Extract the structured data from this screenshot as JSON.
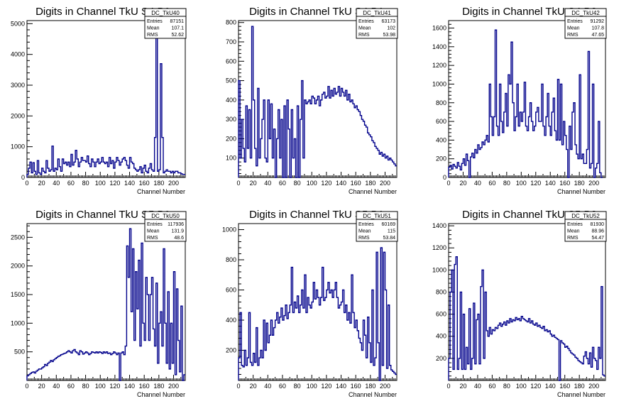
{
  "chart_data": [
    {
      "type": "bar",
      "title": "Digits in Channel TkU S4 P0",
      "xlabel": "Channel Number",
      "ylabel": "",
      "xlim": [
        0,
        216
      ],
      "ylim": [
        0,
        5100
      ],
      "xticks": [
        0,
        20,
        40,
        60,
        80,
        100,
        120,
        140,
        160,
        180,
        200
      ],
      "yticks": [
        0,
        1000,
        2000,
        3000,
        4000,
        5000
      ],
      "color": "#00008b",
      "stats": {
        "name": "DC_TkU40",
        "entries": "87151",
        "mean": "107.1",
        "rms": "52.62"
      },
      "series": [
        {
          "name": "DC_TkU40",
          "x_step": 2,
          "values": [
            100,
            300,
            500,
            150,
            480,
            200,
            100,
            550,
            150,
            100,
            300,
            200,
            150,
            550,
            300,
            200,
            250,
            1020,
            200,
            300,
            250,
            600,
            350,
            200,
            600,
            450,
            500,
            400,
            500,
            350,
            750,
            400,
            500,
            880,
            600,
            350,
            500,
            650,
            550,
            550,
            500,
            700,
            450,
            350,
            600,
            500,
            350,
            500,
            600,
            450,
            500,
            650,
            500,
            450,
            500,
            350,
            650,
            450,
            550,
            300,
            500,
            650,
            550,
            400,
            500,
            600,
            650,
            550,
            400,
            300,
            650,
            500,
            450,
            300,
            250,
            200,
            250,
            350,
            150,
            300,
            400,
            200,
            150,
            300,
            450,
            250,
            200,
            1300,
            4800,
            200,
            250,
            3700,
            1300,
            150,
            200,
            250,
            200,
            200,
            150,
            200,
            150,
            200,
            200,
            150,
            150,
            120,
            100,
            100
          ]
        }
      ]
    },
    {
      "type": "bar",
      "title": "Digits in Channel TkU S4 P1",
      "xlabel": "Channel Number",
      "ylabel": "",
      "xlim": [
        0,
        216
      ],
      "ylim": [
        0,
        810
      ],
      "xticks": [
        0,
        20,
        40,
        60,
        80,
        100,
        120,
        140,
        160,
        180,
        200
      ],
      "yticks": [
        100,
        200,
        300,
        400,
        500,
        600,
        700,
        800
      ],
      "color": "#00008b",
      "stats": {
        "name": "DC_TkU41",
        "entries": "63173",
        "mean": "102",
        "rms": "53.98"
      },
      "series": [
        {
          "name": "DC_TkU41",
          "x_step": 2,
          "values": [
            500,
            100,
            300,
            150,
            80,
            370,
            150,
            350,
            100,
            780,
            400,
            150,
            60,
            460,
            100,
            200,
            300,
            400,
            100,
            80,
            400,
            200,
            380,
            100,
            250,
            0,
            200,
            350,
            100,
            300,
            0,
            370,
            0,
            400,
            250,
            0,
            350,
            100,
            200,
            0,
            370,
            0,
            300,
            500,
            100,
            400,
            380,
            390,
            400,
            380,
            420,
            410,
            380,
            400,
            420,
            370,
            400,
            430,
            440,
            410,
            420,
            470,
            410,
            450,
            420,
            460,
            430,
            440,
            470,
            420,
            460,
            440,
            420,
            450,
            400,
            430,
            390,
            400,
            380,
            360,
            370,
            350,
            340,
            320,
            300,
            290,
            270,
            260,
            230,
            220,
            210,
            190,
            180,
            160,
            150,
            140,
            120,
            130,
            110,
            120,
            100,
            110,
            90,
            100,
            90,
            80,
            70,
            60
          ]
        }
      ]
    },
    {
      "type": "bar",
      "title": "Digits in Channel TkU S4 P2",
      "xlabel": "Channel Number",
      "ylabel": "",
      "xlim": [
        0,
        216
      ],
      "ylim": [
        0,
        1680
      ],
      "xticks": [
        0,
        20,
        40,
        60,
        80,
        100,
        120,
        140,
        160,
        180,
        200
      ],
      "yticks": [
        0,
        200,
        400,
        600,
        800,
        1000,
        1200,
        1400,
        1600
      ],
      "color": "#00008b",
      "stats": {
        "name": "DC_TkU42",
        "entries": "91292",
        "mean": "107.8",
        "rms": "47.65"
      },
      "series": [
        {
          "name": "DC_TkU42",
          "x_step": 2,
          "values": [
            110,
            130,
            90,
            140,
            120,
            100,
            160,
            120,
            80,
            150,
            200,
            130,
            250,
            180,
            0,
            220,
            260,
            210,
            300,
            260,
            350,
            300,
            320,
            380,
            350,
            400,
            450,
            380,
            1000,
            650,
            450,
            650,
            1580,
            550,
            450,
            1000,
            600,
            480,
            700,
            900,
            550,
            1100,
            1000,
            1450,
            800,
            500,
            650,
            1000,
            550,
            700,
            600,
            700,
            1020,
            550,
            500,
            650,
            800,
            600,
            500,
            550,
            700,
            750,
            600,
            600,
            1000,
            550,
            450,
            650,
            900,
            550,
            450,
            700,
            850,
            500,
            400,
            1050,
            400,
            1000,
            350,
            600,
            450,
            300,
            0,
            550,
            300,
            700,
            800,
            350,
            250,
            200,
            1100,
            200,
            250,
            150,
            150,
            300,
            1350,
            100,
            150,
            1000,
            0,
            100,
            150,
            600,
            50,
            0
          ]
        }
      ]
    },
    {
      "type": "bar",
      "title": "Digits in Channel TkU S5 P0",
      "xlabel": "Channel Number",
      "ylabel": "",
      "xlim": [
        0,
        216
      ],
      "ylim": [
        0,
        2740
      ],
      "xticks": [
        0,
        20,
        40,
        60,
        80,
        100,
        120,
        140,
        160,
        180,
        200
      ],
      "yticks": [
        500,
        1000,
        1500,
        2000,
        2500
      ],
      "color": "#00008b",
      "stats": {
        "name": "DC_TkU50",
        "entries": "117936",
        "mean": "131.9",
        "rms": "48.6"
      },
      "series": [
        {
          "name": "DC_TkU50",
          "x_step": 2,
          "values": [
            80,
            100,
            120,
            140,
            150,
            130,
            160,
            180,
            200,
            200,
            220,
            240,
            280,
            260,
            300,
            320,
            350,
            330,
            360,
            380,
            400,
            420,
            430,
            450,
            460,
            470,
            480,
            500,
            520,
            500,
            480,
            520,
            540,
            500,
            480,
            450,
            520,
            500,
            460,
            480,
            500,
            480,
            450,
            470,
            500,
            490,
            480,
            500,
            480,
            500,
            490,
            470,
            500,
            480,
            500,
            470,
            480,
            450,
            470,
            500,
            480,
            450,
            480,
            0,
            480,
            500,
            450,
            600,
            2350,
            1800,
            2650,
            1200,
            2300,
            700,
            1900,
            1250,
            2100,
            600,
            2400,
            1000,
            700,
            1800,
            1500,
            700,
            1500,
            1800,
            900,
            600,
            1700,
            300,
            1000,
            1200,
            600,
            2300,
            1000,
            300,
            1550,
            200,
            1000,
            300,
            1900,
            100,
            1600,
            700,
            150,
            1300,
            0,
            100
          ]
        }
      ]
    },
    {
      "type": "bar",
      "title": "Digits in Channel TkU S5 P1",
      "xlabel": "Channel Number",
      "ylabel": "",
      "xlim": [
        0,
        216
      ],
      "ylim": [
        0,
        1040
      ],
      "xticks": [
        0,
        20,
        40,
        60,
        80,
        100,
        120,
        140,
        160,
        180,
        200
      ],
      "yticks": [
        200,
        400,
        600,
        800,
        1000
      ],
      "color": "#00008b",
      "stats": {
        "name": "DC_TkU51",
        "entries": "60169",
        "mean": "115",
        "rms": "53.84"
      },
      "series": [
        {
          "name": "DC_TkU51",
          "x_step": 2,
          "values": [
            150,
            450,
            100,
            90,
            200,
            100,
            150,
            450,
            120,
            100,
            180,
            120,
            350,
            100,
            150,
            200,
            150,
            400,
            200,
            380,
            250,
            300,
            400,
            300,
            350,
            400,
            450,
            380,
            420,
            480,
            400,
            430,
            500,
            410,
            450,
            500,
            750,
            450,
            520,
            480,
            560,
            450,
            500,
            600,
            480,
            700,
            450,
            550,
            500,
            480,
            520,
            650,
            540,
            600,
            550,
            500,
            550,
            750,
            530,
            550,
            600,
            650,
            580,
            600,
            550,
            600,
            650,
            550,
            480,
            500,
            520,
            600,
            450,
            500,
            400,
            450,
            380,
            700,
            450,
            350,
            400,
            330,
            280,
            250,
            200,
            400,
            300,
            150,
            420,
            250,
            120,
            600,
            100,
            150,
            850,
            250,
            0,
            880,
            100,
            850,
            600,
            80,
            500,
            100,
            70,
            60,
            50,
            40
          ]
        }
      ]
    },
    {
      "type": "bar",
      "title": "Digits in Channel TkU S5 P2",
      "xlabel": "Channel Number",
      "ylabel": "",
      "xlim": [
        0,
        216
      ],
      "ylim": [
        0,
        1420
      ],
      "xticks": [
        0,
        20,
        40,
        60,
        80,
        100,
        120,
        140,
        160,
        180,
        200
      ],
      "yticks": [
        200,
        400,
        600,
        800,
        1000,
        1200,
        1400
      ],
      "color": "#00008b",
      "stats": {
        "name": "DC_TkU52",
        "entries": "81930",
        "mean": "88.96",
        "rms": "54.47"
      },
      "series": [
        {
          "name": "DC_TkU52",
          "x_step": 2,
          "values": [
            200,
            800,
            1000,
            100,
            1050,
            1120,
            100,
            200,
            800,
            100,
            600,
            100,
            300,
            150,
            650,
            100,
            200,
            700,
            150,
            550,
            600,
            150,
            850,
            1000,
            200,
            800,
            450,
            400,
            480,
            420,
            460,
            450,
            480,
            470,
            500,
            520,
            490,
            510,
            530,
            500,
            540,
            520,
            560,
            530,
            550,
            540,
            570,
            550,
            560,
            540,
            580,
            560,
            550,
            540,
            530,
            560,
            520,
            540,
            510,
            500,
            520,
            490,
            500,
            480,
            470,
            490,
            450,
            460,
            440,
            450,
            420,
            400,
            410,
            390,
            380,
            370,
            0,
            360,
            340,
            330,
            300,
            310,
            290,
            270,
            250,
            240,
            230,
            210,
            200,
            180,
            170,
            160,
            150,
            220,
            260,
            200,
            150,
            250,
            120,
            300,
            200,
            180,
            100,
            300,
            200,
            850,
            50,
            40
          ]
        }
      ]
    }
  ]
}
